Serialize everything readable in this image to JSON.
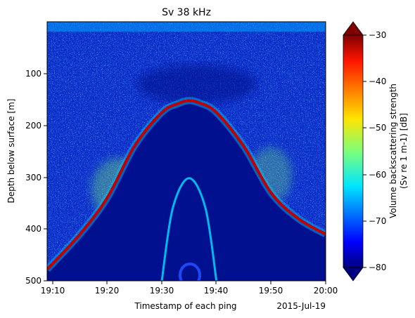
{
  "chart_data": {
    "type": "heatmap",
    "title": "Sv 38 kHz",
    "xlabel": "Timestamp of each ping",
    "x_date_label": "2015-Jul-19",
    "ylabel": "Depth below surface [m]",
    "x_ticks": [
      "19:10",
      "19:20",
      "19:30",
      "19:40",
      "19:50",
      "20:00"
    ],
    "y_ticks": [
      "100",
      "200",
      "300",
      "400",
      "500"
    ],
    "xlim": [
      "19:09",
      "20:00"
    ],
    "ylim": [
      0,
      500
    ],
    "y_inverted": true,
    "colormap": "jet",
    "colorbar": {
      "label_line1": "Volume backscattering strength",
      "label_line2": "(Sv re 1 m-1) [dB]",
      "range": [
        -80,
        -30
      ],
      "ticks": [
        "−30",
        "−40",
        "−50",
        "−60",
        "−70",
        "−80"
      ],
      "extend": "both"
    },
    "features": {
      "seafloor_echo": {
        "description": "arch-shaped bottom echo",
        "points_time_depth": [
          [
            "19:09",
            478
          ],
          [
            "19:15",
            410
          ],
          [
            "19:20",
            340
          ],
          [
            "19:25",
            240
          ],
          [
            "19:30",
            175
          ],
          [
            "19:33",
            158
          ],
          [
            "19:35",
            152
          ],
          [
            "19:37",
            157
          ],
          [
            "19:40",
            175
          ],
          [
            "19:45",
            240
          ],
          [
            "19:50",
            330
          ],
          [
            "19:55",
            380
          ],
          [
            "20:00",
            410
          ]
        ]
      },
      "second_echo": {
        "points_time_depth": [
          [
            "19:30",
            500
          ],
          [
            "19:32",
            360
          ],
          [
            "19:35",
            302
          ],
          [
            "19:38",
            360
          ],
          [
            "19:40",
            500
          ]
        ]
      }
    }
  }
}
